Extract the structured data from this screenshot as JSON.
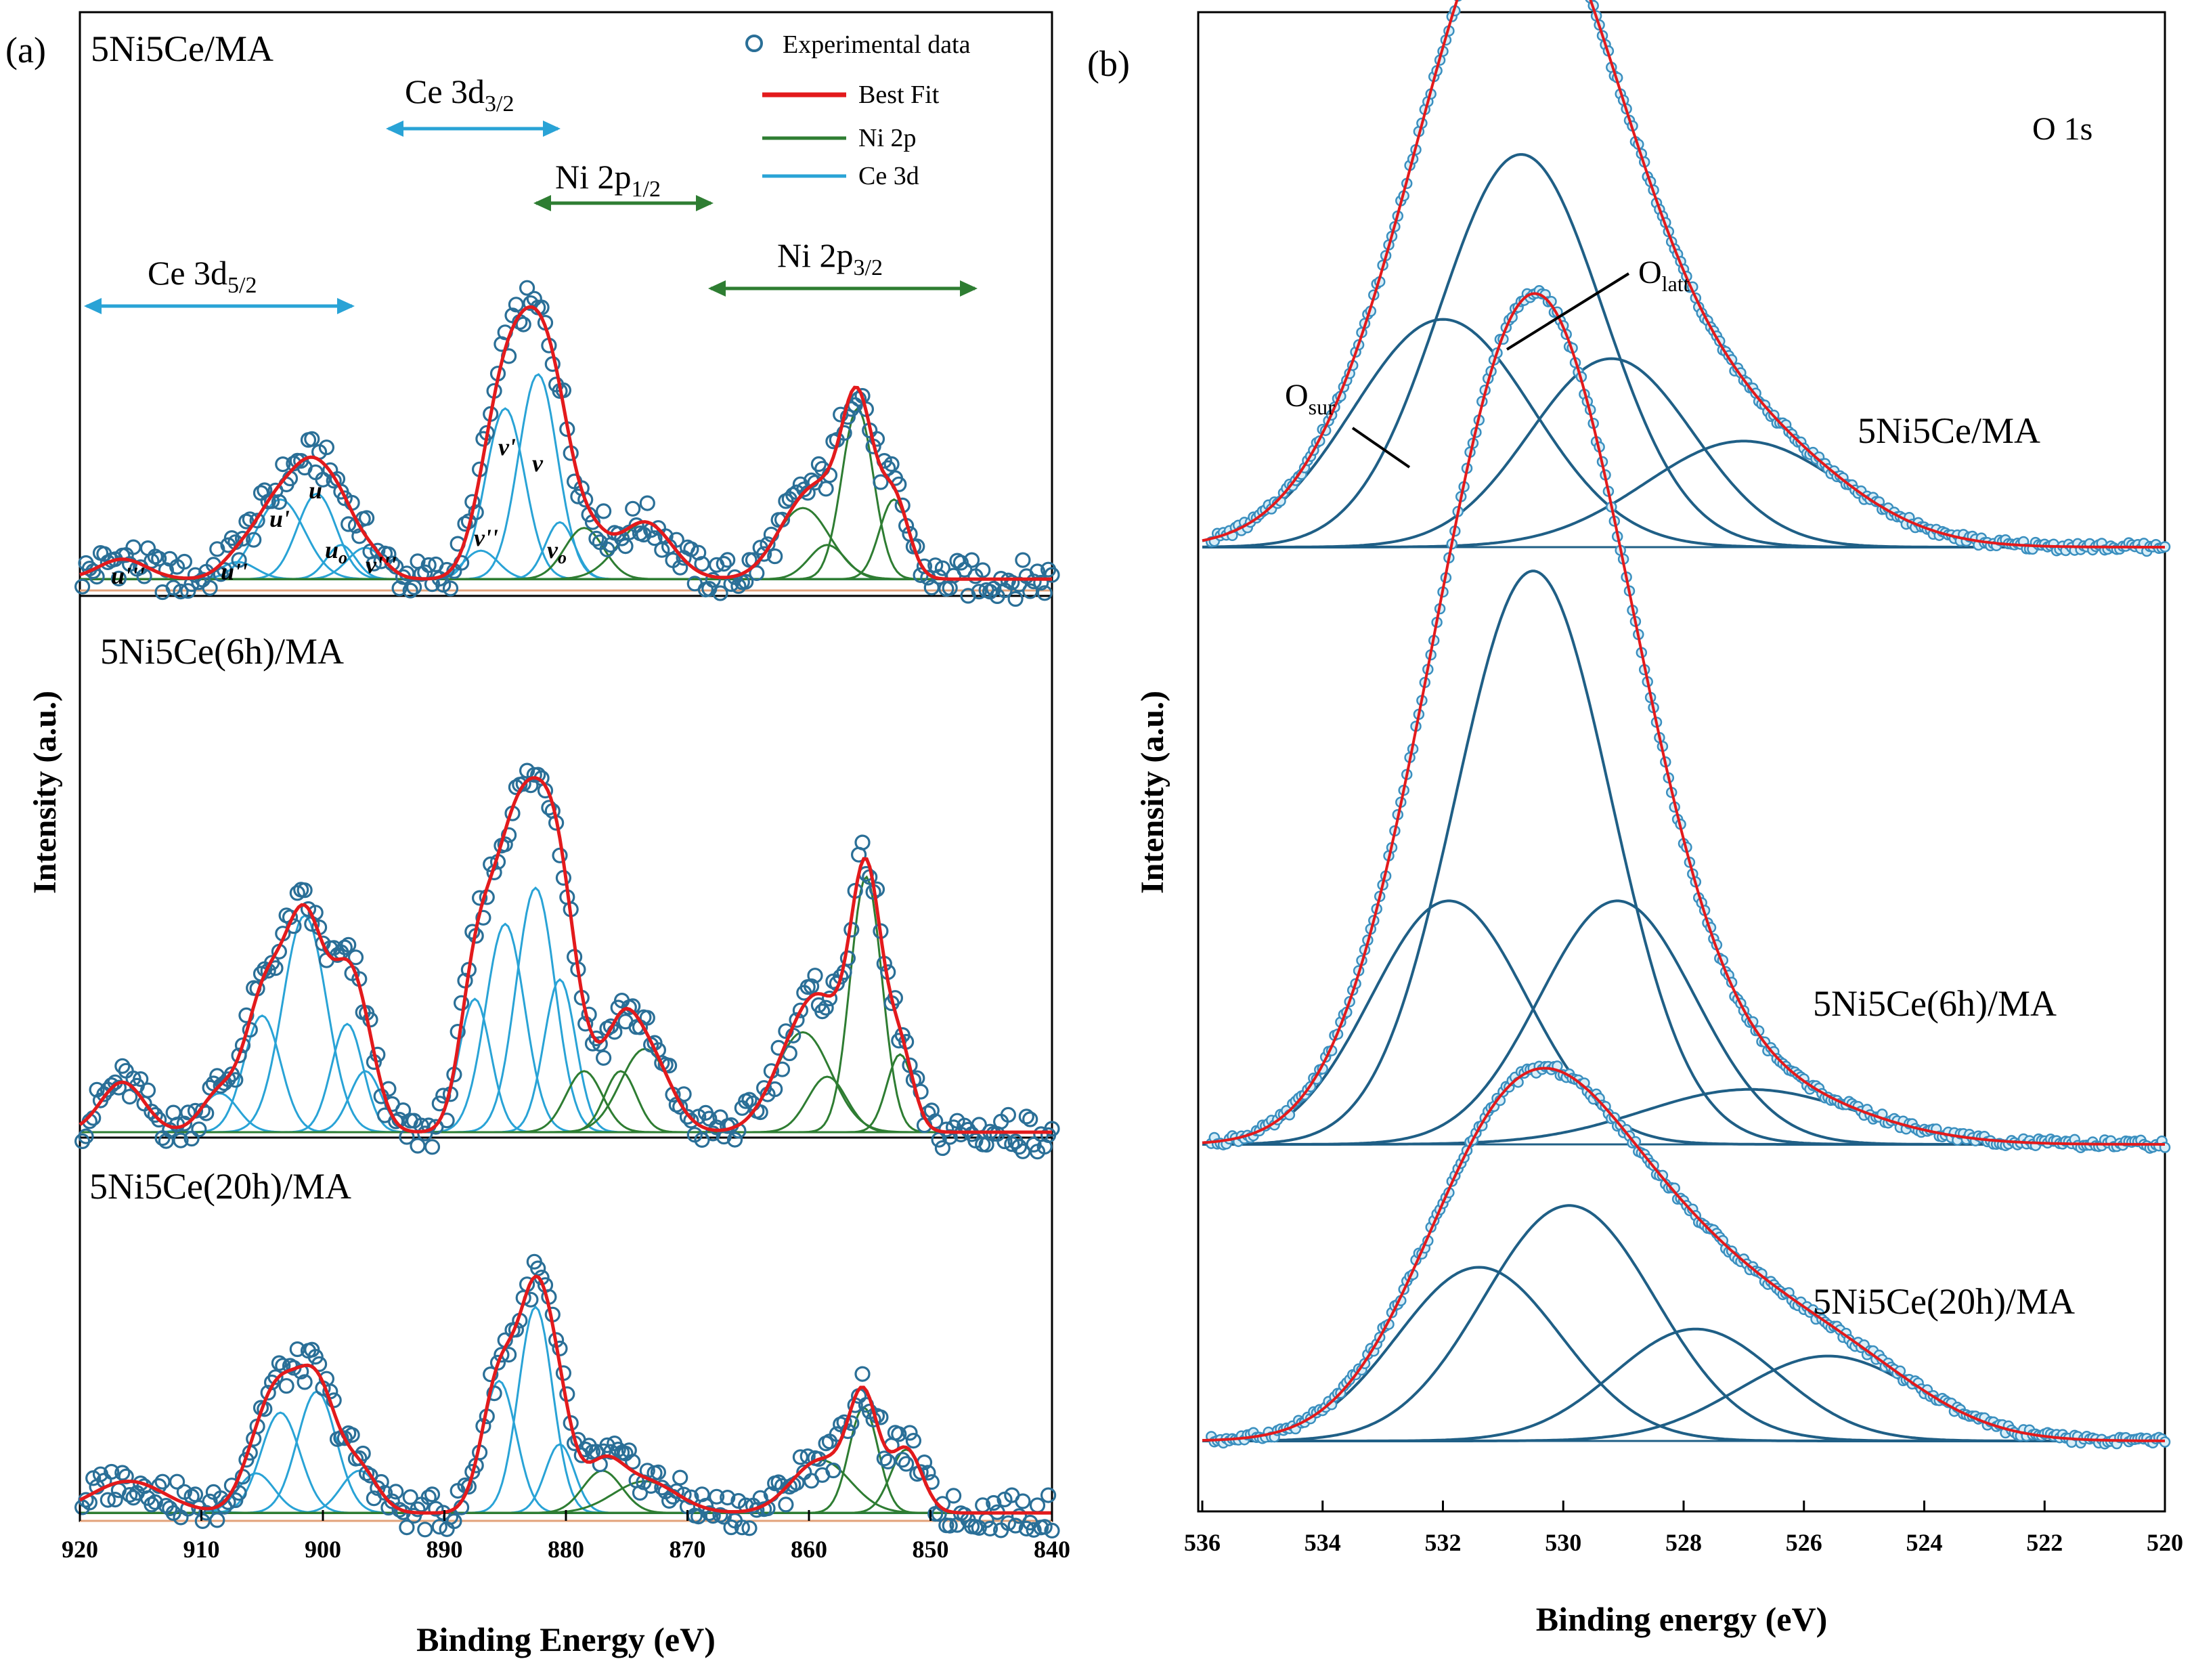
{
  "chart_data": [
    {
      "panel_label": "(a)",
      "type": "line",
      "xlabel": "Binding Energy (eV)",
      "ylabel": "Intensity (a.u.)",
      "xlim": [
        920,
        840
      ],
      "xticks": [
        "920",
        "910",
        "900",
        "890",
        "880",
        "870",
        "860",
        "850",
        "840"
      ],
      "legend": {
        "position": "top-right",
        "entries": [
          {
            "label": "Experimental data",
            "style": "marker",
            "color": "#2a6f97"
          },
          {
            "label": "Best Fit",
            "style": "line",
            "color": "#e31a1c"
          },
          {
            "label": "Ni 2p",
            "style": "line",
            "color": "#2e7d32"
          },
          {
            "label": "Ce 3d",
            "style": "line",
            "color": "#29a3d6"
          }
        ]
      },
      "region_labels": [
        {
          "text": "Ce 3d",
          "sub": "5/2",
          "from": 920,
          "to": 893,
          "color": "#29a3d6"
        },
        {
          "text": "Ce 3d",
          "sub": "3/2",
          "from": 895,
          "to": 877,
          "color": "#29a3d6"
        },
        {
          "text": "Ni 2p",
          "sub": "1/2",
          "from": 880,
          "to": 866,
          "color": "#2e7d32"
        },
        {
          "text": "Ni 2p",
          "sub": "3/2",
          "from": 866,
          "to": 844,
          "color": "#2e7d32"
        }
      ],
      "peak_labels": [
        {
          "text": "u'''",
          "x": 914
        },
        {
          "text": "u''",
          "x": 907
        },
        {
          "text": "u'",
          "x": 903
        },
        {
          "text": "u",
          "x": 900.5
        },
        {
          "text": "u",
          "sub": "o",
          "x": 898.5
        },
        {
          "text": "v'''",
          "x": 896
        },
        {
          "text": "v''",
          "x": 887
        },
        {
          "text": "v'",
          "x": 884.5
        },
        {
          "text": "v",
          "x": 882
        },
        {
          "text": "v",
          "sub": "o",
          "x": 880.5
        }
      ],
      "series": [
        {
          "name": "5Ni5Ce/MA",
          "baseline": 4,
          "ce3d_peaks": [
            [
              916.5,
              7,
              2.0
            ],
            [
              907,
              6,
              1.5
            ],
            [
              903.5,
              28,
              2.0
            ],
            [
              900.5,
              30,
              1.6
            ],
            [
              898.5,
              12,
              1.2
            ],
            [
              896.5,
              11,
              1.5
            ],
            [
              887,
              10,
              1.4
            ],
            [
              885,
              60,
              1.6
            ],
            [
              882.3,
              72,
              1.6
            ],
            [
              880.5,
              20,
              1.2
            ]
          ],
          "ni2p_peaks": [
            [
              878.5,
              18,
              1.6
            ],
            [
              873.5,
              20,
              2.2
            ],
            [
              860.5,
              25,
              2.2
            ],
            [
              858.5,
              12,
              1.5
            ],
            [
              856,
              60,
              1.3
            ],
            [
              853,
              28,
              1.2
            ]
          ]
        },
        {
          "name": "5Ni5Ce(6h)/MA",
          "baseline": 0,
          "ce3d_peaks": [
            [
              916.5,
              18,
              1.8
            ],
            [
              908.5,
              14,
              1.5
            ],
            [
              905,
              42,
              1.5
            ],
            [
              901.5,
              78,
              1.8
            ],
            [
              898,
              39,
              1.3
            ],
            [
              896.5,
              22,
              1.3
            ],
            [
              887.5,
              48,
              1.3
            ],
            [
              885,
              75,
              1.6
            ],
            [
              882.5,
              88,
              1.6
            ],
            [
              880.5,
              55,
              1.3
            ]
          ],
          "ni2p_peaks": [
            [
              878.5,
              22,
              1.5
            ],
            [
              875.5,
              22,
              1.3
            ],
            [
              873.5,
              30,
              2.0
            ],
            [
              860.5,
              36,
              2.3
            ],
            [
              858.5,
              20,
              1.6
            ],
            [
              855.3,
              92,
              1.3
            ],
            [
              852.5,
              28,
              1.1
            ]
          ]
        },
        {
          "name": "5Ni5Ce(20h)/MA",
          "baseline": 3,
          "ce3d_peaks": [
            [
              916,
              12,
              3.0
            ],
            [
              905.5,
              15,
              1.5
            ],
            [
              903.5,
              38,
              1.6
            ],
            [
              900.5,
              46,
              1.6
            ],
            [
              897,
              16,
              1.5
            ],
            [
              885.5,
              50,
              1.4
            ],
            [
              882.5,
              78,
              1.4
            ],
            [
              880.5,
              26,
              1.2
            ]
          ],
          "ni2p_peaks": [
            [
              877,
              16,
              1.6
            ],
            [
              873.5,
              12,
              2.6
            ],
            [
              859,
              20,
              2.4
            ],
            [
              855.5,
              40,
              1.2
            ],
            [
              852,
              24,
              1.3
            ]
          ]
        }
      ]
    },
    {
      "panel_label": "(b)",
      "type": "line",
      "title": "O 1s",
      "xlabel": "Binding energy (eV)",
      "ylabel": "Intensity (a.u.)",
      "xlim": [
        536,
        520
      ],
      "xticks": [
        "536",
        "534",
        "532",
        "530",
        "528",
        "526",
        "524",
        "522",
        "520"
      ],
      "annotations": [
        {
          "text": "O",
          "sub": "sur"
        },
        {
          "text": "O",
          "sub": "latt"
        }
      ],
      "series": [
        {
          "name": "5Ni5Ce/MA",
          "components": [
            {
              "center": 532.0,
              "height": 58,
              "fwhm": 2.2
            },
            {
              "center": 530.7,
              "height": 100,
              "fwhm": 2.0
            },
            {
              "center": 529.2,
              "height": 48,
              "fwhm": 2.0
            },
            {
              "center": 527.0,
              "height": 27,
              "fwhm": 2.4
            }
          ]
        },
        {
          "name": "5Ni5Ce(6h)/MA",
          "components": [
            {
              "center": 531.9,
              "height": 62,
              "fwhm": 1.9
            },
            {
              "center": 530.5,
              "height": 146,
              "fwhm": 1.9
            },
            {
              "center": 529.1,
              "height": 62,
              "fwhm": 1.9
            },
            {
              "center": 526.9,
              "height": 14,
              "fwhm": 2.6
            }
          ]
        },
        {
          "name": "5Ni5Ce(20h)/MA",
          "components": [
            {
              "center": 531.4,
              "height": 45,
              "fwhm": 2.0
            },
            {
              "center": 529.9,
              "height": 61,
              "fwhm": 2.1
            },
            {
              "center": 527.8,
              "height": 29,
              "fwhm": 2.0
            },
            {
              "center": 525.6,
              "height": 22,
              "fwhm": 2.2
            }
          ]
        }
      ]
    }
  ]
}
